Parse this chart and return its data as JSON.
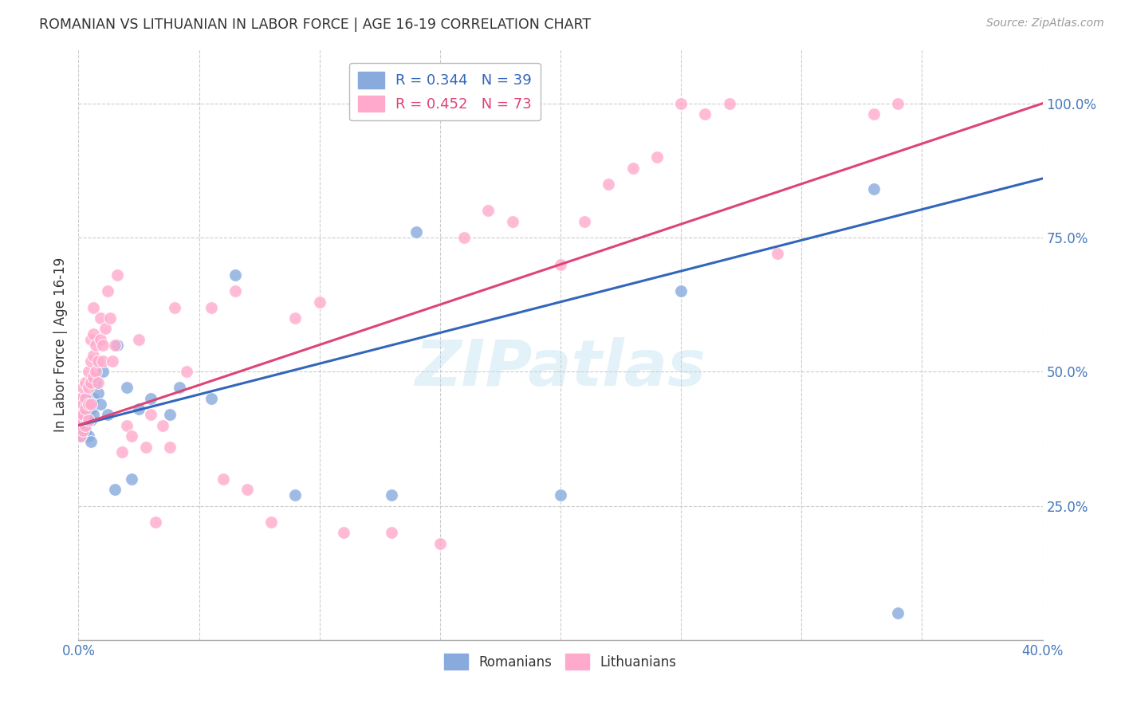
{
  "title": "ROMANIAN VS LITHUANIAN IN LABOR FORCE | AGE 16-19 CORRELATION CHART",
  "source": "Source: ZipAtlas.com",
  "ylabel": "In Labor Force | Age 16-19",
  "xlim": [
    0.0,
    0.4
  ],
  "ylim": [
    0.0,
    1.1
  ],
  "blue_color": "#88AADD",
  "pink_color": "#FFAACC",
  "blue_line_color": "#3366BB",
  "pink_line_color": "#DD4477",
  "R_blue": 0.344,
  "N_blue": 39,
  "R_pink": 0.452,
  "N_pink": 73,
  "legend_label_blue": "Romanians",
  "legend_label_pink": "Lithuanians",
  "blue_points_x": [
    0.001,
    0.001,
    0.001,
    0.002,
    0.002,
    0.002,
    0.003,
    0.003,
    0.003,
    0.004,
    0.004,
    0.004,
    0.005,
    0.005,
    0.005,
    0.006,
    0.006,
    0.007,
    0.008,
    0.009,
    0.01,
    0.012,
    0.015,
    0.016,
    0.02,
    0.022,
    0.025,
    0.03,
    0.038,
    0.042,
    0.055,
    0.065,
    0.09,
    0.13,
    0.14,
    0.2,
    0.25,
    0.33,
    0.34
  ],
  "blue_points_y": [
    0.42,
    0.4,
    0.38,
    0.45,
    0.43,
    0.41,
    0.44,
    0.42,
    0.39,
    0.44,
    0.41,
    0.38,
    0.43,
    0.41,
    0.37,
    0.45,
    0.42,
    0.48,
    0.46,
    0.44,
    0.5,
    0.42,
    0.28,
    0.55,
    0.47,
    0.3,
    0.43,
    0.45,
    0.42,
    0.47,
    0.45,
    0.68,
    0.27,
    0.27,
    0.76,
    0.27,
    0.65,
    0.84,
    0.05
  ],
  "pink_points_x": [
    0.001,
    0.001,
    0.001,
    0.001,
    0.002,
    0.002,
    0.002,
    0.002,
    0.003,
    0.003,
    0.003,
    0.003,
    0.004,
    0.004,
    0.004,
    0.004,
    0.005,
    0.005,
    0.005,
    0.005,
    0.006,
    0.006,
    0.006,
    0.006,
    0.007,
    0.007,
    0.008,
    0.008,
    0.009,
    0.009,
    0.01,
    0.01,
    0.011,
    0.012,
    0.013,
    0.014,
    0.015,
    0.016,
    0.018,
    0.02,
    0.022,
    0.025,
    0.028,
    0.03,
    0.032,
    0.035,
    0.038,
    0.04,
    0.045,
    0.055,
    0.06,
    0.065,
    0.07,
    0.08,
    0.09,
    0.1,
    0.11,
    0.13,
    0.15,
    0.16,
    0.17,
    0.18,
    0.2,
    0.21,
    0.22,
    0.23,
    0.24,
    0.25,
    0.26,
    0.27,
    0.29,
    0.33,
    0.34
  ],
  "pink_points_y": [
    0.42,
    0.45,
    0.41,
    0.38,
    0.44,
    0.47,
    0.42,
    0.39,
    0.45,
    0.48,
    0.43,
    0.4,
    0.47,
    0.5,
    0.44,
    0.41,
    0.52,
    0.56,
    0.48,
    0.44,
    0.57,
    0.62,
    0.53,
    0.49,
    0.55,
    0.5,
    0.52,
    0.48,
    0.6,
    0.56,
    0.55,
    0.52,
    0.58,
    0.65,
    0.6,
    0.52,
    0.55,
    0.68,
    0.35,
    0.4,
    0.38,
    0.56,
    0.36,
    0.42,
    0.22,
    0.4,
    0.36,
    0.62,
    0.5,
    0.62,
    0.3,
    0.65,
    0.28,
    0.22,
    0.6,
    0.63,
    0.2,
    0.2,
    0.18,
    0.75,
    0.8,
    0.78,
    0.7,
    0.78,
    0.85,
    0.88,
    0.9,
    1.0,
    0.98,
    1.0,
    0.72,
    0.98,
    1.0
  ]
}
